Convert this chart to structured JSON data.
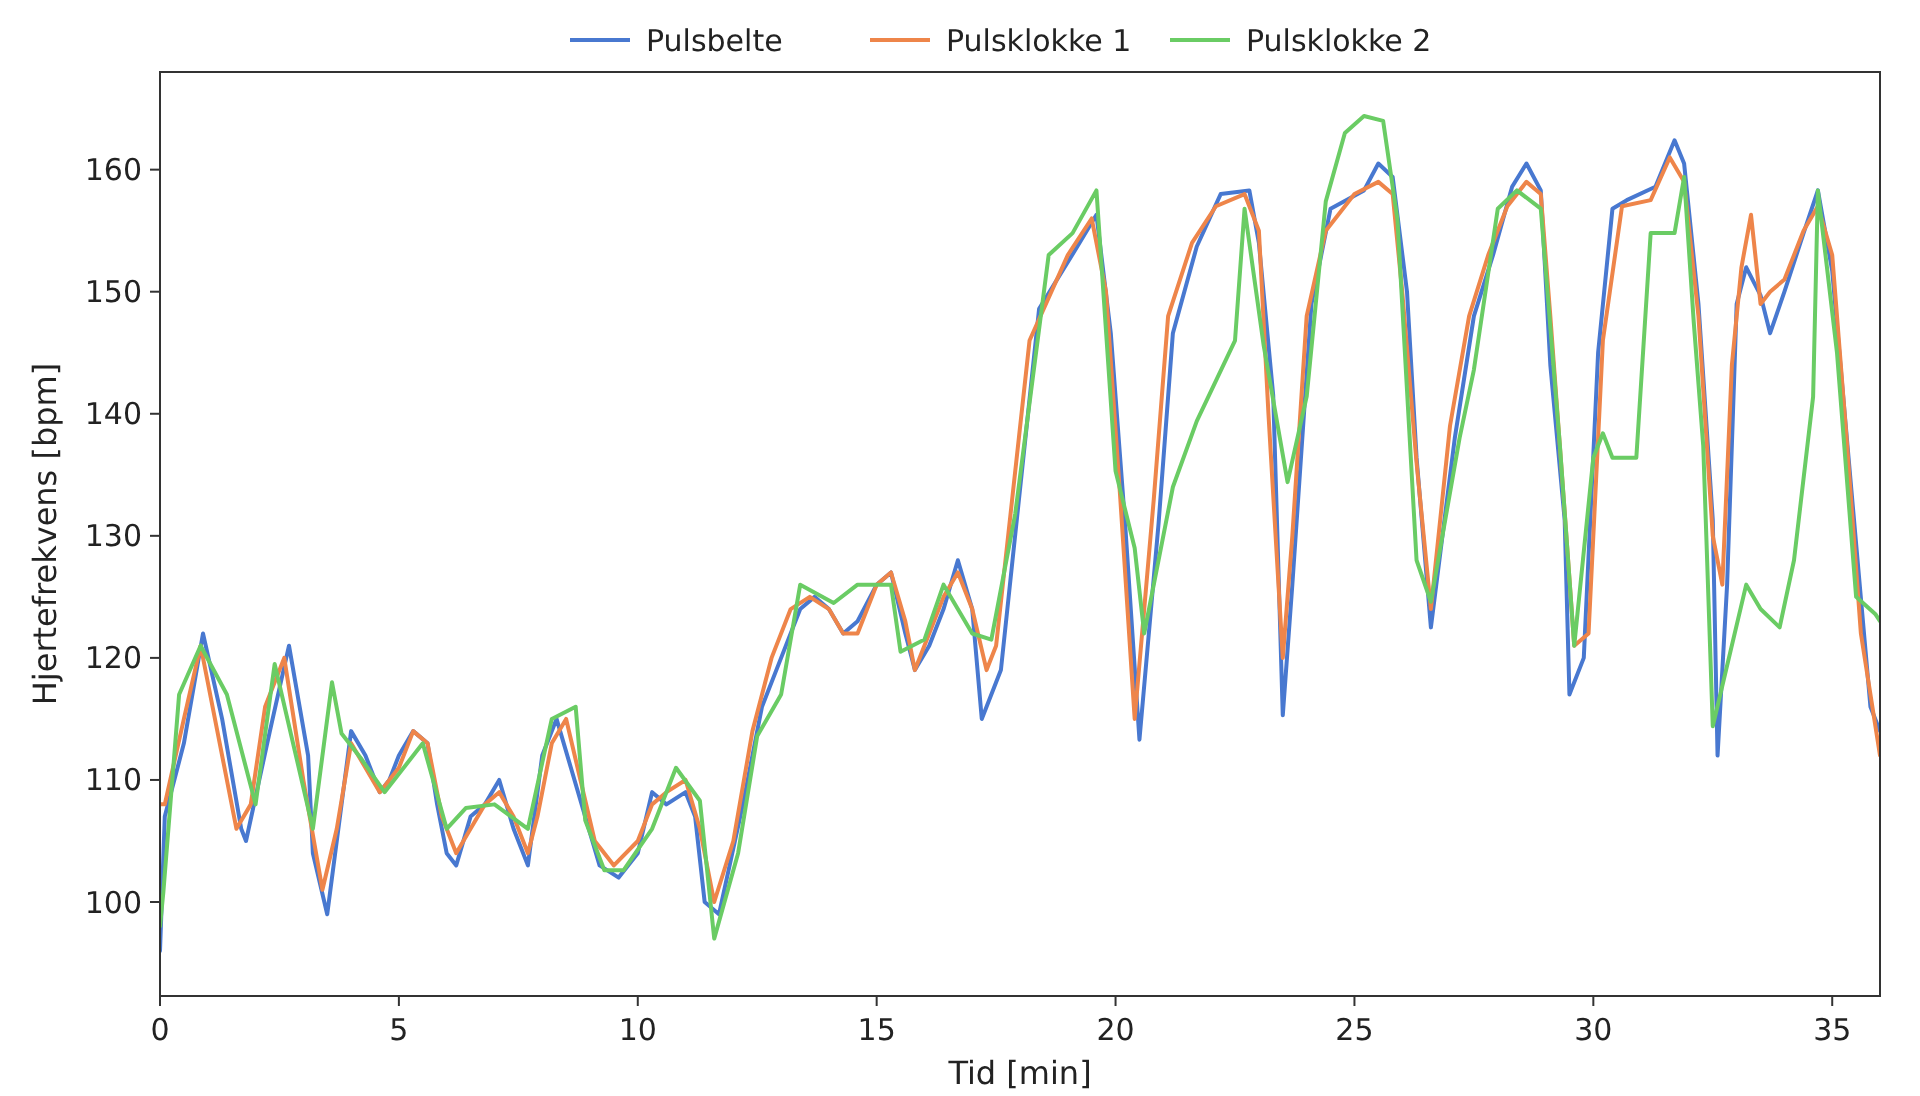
{
  "chart_data": {
    "type": "line",
    "xlabel": "Tid [min]",
    "ylabel": "Hjertefrekvens [bpm]",
    "xlim": [
      0,
      36
    ],
    "ylim": [
      92.3,
      168
    ],
    "xticks": [
      0,
      5,
      10,
      15,
      20,
      25,
      30,
      35
    ],
    "yticks": [
      100,
      110,
      120,
      130,
      140,
      150,
      160
    ],
    "grid": false,
    "legend": "top",
    "line_style": "solid",
    "marker": "none",
    "series": [
      {
        "name": "Pulsbelte",
        "color": "#4878d0",
        "x": [
          0,
          0.1,
          0.5,
          0.9,
          1.3,
          1.7,
          1.8,
          2.3,
          2.7,
          3.1,
          3.2,
          3.5,
          3.8,
          4.0,
          4.3,
          4.6,
          4.8,
          5.0,
          5.3,
          5.6,
          5.8,
          6.0,
          6.2,
          6.5,
          6.8,
          7.1,
          7.4,
          7.7,
          8.0,
          8.3,
          8.6,
          8.9,
          9.2,
          9.6,
          10.0,
          10.3,
          10.6,
          11.0,
          11.2,
          11.4,
          11.7,
          12.2,
          12.6,
          13.0,
          13.4,
          13.7,
          14.0,
          14.3,
          14.6,
          15.0,
          15.3,
          15.6,
          15.8,
          16.1,
          16.4,
          16.7,
          17.0,
          17.2,
          17.6,
          18.4,
          19.2,
          19.6,
          19.9,
          20.2,
          20.5,
          20.9,
          21.2,
          21.7,
          22.2,
          22.8,
          23.0,
          23.3,
          23.5,
          23.7,
          24.1,
          24.5,
          25.2,
          25.5,
          25.8,
          26.1,
          26.3,
          26.6,
          27.1,
          27.5,
          27.9,
          28.3,
          28.6,
          28.9,
          29.1,
          29.4,
          29.5,
          29.8,
          30.1,
          30.4,
          30.7,
          31.3,
          31.7,
          31.9,
          32.2,
          32.5,
          32.6,
          32.8,
          33.0,
          33.2,
          33.5,
          33.7,
          34.0,
          34.4,
          34.7,
          35.0,
          35.4,
          35.8,
          36.0
        ],
        "values": [
          96,
          107,
          113,
          122,
          115,
          106,
          105,
          114,
          121,
          112,
          104,
          99,
          108,
          114,
          112,
          109,
          110,
          112,
          114,
          113,
          108,
          104,
          103,
          107,
          108,
          110,
          106,
          103,
          112,
          115,
          111,
          107,
          103,
          102,
          104,
          109,
          108,
          109,
          107,
          100,
          99,
          108,
          116,
          120,
          124,
          125,
          124,
          122,
          123,
          126,
          127,
          122,
          119,
          121,
          124,
          128,
          124,
          115,
          119,
          148.6,
          153.7,
          156.3,
          146.6,
          131,
          113.3,
          131,
          146.6,
          153.7,
          158,
          158.3,
          154,
          141.5,
          115.3,
          126,
          149,
          156.8,
          158.3,
          160.5,
          159.4,
          150,
          136.4,
          122.5,
          138,
          148,
          153,
          158.6,
          160.5,
          158.3,
          144,
          131.3,
          117,
          120,
          145,
          156.8,
          157.5,
          158.6,
          162.4,
          160.5,
          149,
          131.3,
          112,
          126,
          149,
          152,
          149.7,
          146.6,
          150,
          154.8,
          158.3,
          151.7,
          133.8,
          116,
          114
        ]
      },
      {
        "name": "Pulsklokke 1",
        "color": "#ee854a",
        "x": [
          0,
          0.1,
          0.5,
          0.85,
          1.2,
          1.6,
          1.9,
          2.2,
          2.6,
          3.0,
          3.4,
          3.7,
          4.0,
          4.3,
          4.6,
          5.0,
          5.3,
          5.6,
          5.9,
          6.2,
          6.5,
          6.8,
          7.1,
          7.4,
          7.7,
          7.9,
          8.2,
          8.5,
          8.8,
          9.1,
          9.5,
          10.0,
          10.3,
          10.6,
          11.0,
          11.3,
          11.6,
          12.0,
          12.4,
          12.8,
          13.2,
          13.6,
          14.0,
          14.3,
          14.6,
          15.0,
          15.3,
          15.6,
          15.8,
          16.1,
          16.4,
          16.7,
          17.0,
          17.3,
          17.5,
          18.2,
          19.0,
          19.5,
          19.8,
          20.1,
          20.4,
          20.8,
          21.1,
          21.6,
          22.1,
          22.7,
          23.0,
          23.2,
          23.5,
          23.7,
          24.0,
          24.4,
          25.0,
          25.5,
          25.8,
          26.0,
          26.3,
          26.6,
          27.0,
          27.4,
          27.8,
          28.2,
          28.6,
          28.9,
          29.1,
          29.4,
          29.6,
          29.9,
          30.2,
          30.6,
          31.2,
          31.6,
          31.9,
          32.2,
          32.5,
          32.7,
          32.9,
          33.1,
          33.3,
          33.5,
          33.7,
          34.0,
          34.4,
          34.7,
          35.0,
          35.3,
          35.6,
          36.0
        ],
        "values": [
          108,
          108,
          115,
          121,
          114,
          106,
          108,
          116,
          120,
          110,
          101,
          106,
          113,
          111,
          109,
          111,
          114,
          113,
          107,
          104,
          106,
          108,
          109,
          107,
          104,
          107,
          113,
          115,
          110,
          105,
          103,
          105,
          108,
          109,
          110,
          106,
          100,
          105,
          114,
          120,
          124,
          125,
          124,
          122,
          122,
          126,
          127,
          123,
          119,
          122,
          125,
          127,
          124,
          119,
          121,
          146,
          153,
          156,
          150,
          133,
          115,
          133,
          148,
          154,
          157,
          158,
          155,
          140,
          120,
          130,
          148,
          155,
          158,
          159,
          158,
          150,
          136,
          124,
          139,
          148,
          153,
          157,
          159,
          158,
          148,
          132,
          121,
          122,
          146,
          157,
          157.5,
          161,
          159,
          148,
          130,
          126,
          144,
          152,
          156.3,
          149,
          150,
          151,
          155,
          157,
          153,
          138,
          122,
          112
        ]
      },
      {
        "name": "Pulsklokke 2",
        "color": "#6acc64",
        "x": [
          0,
          0.07,
          0.4,
          0.85,
          1.4,
          2.0,
          2.4,
          3.2,
          3.6,
          3.8,
          4.2,
          4.7,
          5.5,
          6.0,
          6.4,
          7.0,
          7.7,
          8.2,
          8.7,
          8.9,
          9.3,
          9.7,
          10.3,
          10.8,
          11.3,
          11.6,
          12.1,
          12.5,
          13.0,
          13.4,
          14.1,
          14.6,
          15.3,
          15.5,
          16.0,
          16.4,
          17.0,
          17.4,
          17.9,
          18.6,
          19.1,
          19.6,
          20.0,
          20.4,
          20.6,
          21.2,
          21.7,
          22.5,
          22.7,
          23.1,
          23.6,
          24.0,
          24.4,
          24.8,
          25.2,
          25.6,
          25.9,
          26.3,
          26.6,
          27.2,
          27.5,
          28.0,
          28.4,
          28.9,
          29.3,
          29.6,
          30.0,
          30.2,
          30.4,
          30.9,
          31.2,
          31.7,
          31.9,
          32.1,
          32.3,
          32.5,
          33.2,
          33.5,
          33.9,
          34.2,
          34.6,
          34.7,
          35.1,
          35.5,
          35.9,
          36.0
        ],
        "values": [
          98,
          100.8,
          117,
          121,
          117,
          108,
          119.5,
          106,
          118,
          113.8,
          111.8,
          109,
          113,
          106,
          107.7,
          108,
          106,
          115,
          116,
          106.7,
          102.6,
          102.6,
          106,
          111,
          108.3,
          97,
          104,
          113.6,
          117,
          126,
          124.5,
          126,
          126,
          120.5,
          121.5,
          126,
          122,
          121.5,
          131.8,
          153,
          154.8,
          158.3,
          135.3,
          129,
          122,
          134,
          139.4,
          146,
          156.8,
          145.6,
          134.4,
          141.4,
          157.4,
          163,
          164.4,
          164,
          155.9,
          128,
          124.6,
          138,
          143.6,
          156.8,
          158.3,
          156.8,
          137.4,
          121,
          136.4,
          138.4,
          136.4,
          136.4,
          154.8,
          154.8,
          159.4,
          147.6,
          137.4,
          114.4,
          126,
          124,
          122.5,
          128,
          141.4,
          158.3,
          145,
          125,
          123.6,
          123
        ]
      }
    ]
  }
}
